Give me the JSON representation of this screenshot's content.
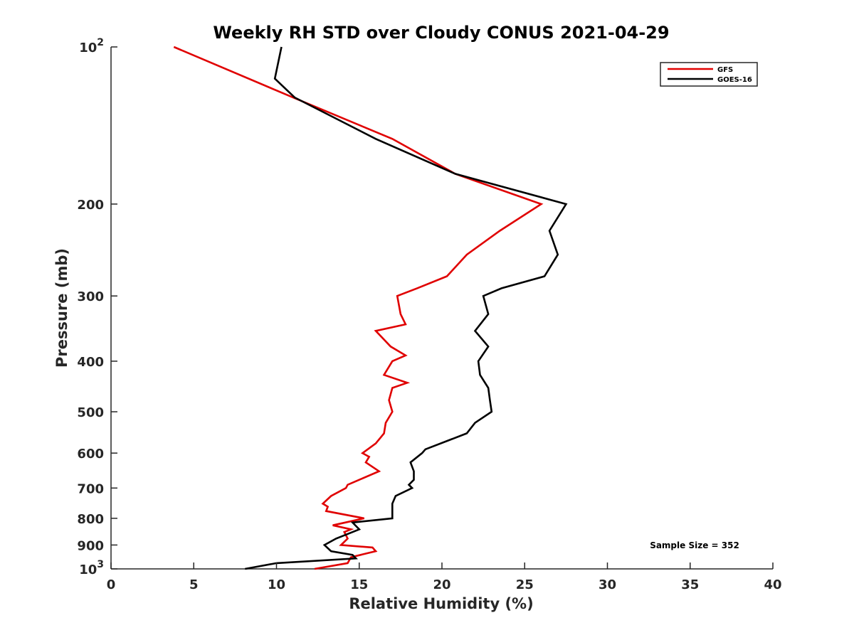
{
  "chart_data": {
    "type": "line",
    "title": "Weekly RH STD over Cloudy CONUS 2021-04-29",
    "xlabel": "Relative Humidity (%)",
    "ylabel": "Pressure (mb)",
    "xlim": [
      0,
      40
    ],
    "ylim": [
      100,
      1000
    ],
    "y_scale": "log",
    "y_reversed": true,
    "x_ticks": [
      "0",
      "5",
      "10",
      "15",
      "20",
      "25",
      "30",
      "35",
      "40"
    ],
    "x_tick_values": [
      0,
      5,
      10,
      15,
      20,
      25,
      30,
      35,
      40
    ],
    "y_ticks": [
      {
        "value": 100,
        "label": "10",
        "sup": "2"
      },
      {
        "value": 200,
        "label": "200",
        "sup": ""
      },
      {
        "value": 300,
        "label": "300",
        "sup": ""
      },
      {
        "value": 400,
        "label": "400",
        "sup": ""
      },
      {
        "value": 500,
        "label": "500",
        "sup": ""
      },
      {
        "value": 600,
        "label": "600",
        "sup": ""
      },
      {
        "value": 700,
        "label": "700",
        "sup": ""
      },
      {
        "value": 800,
        "label": "800",
        "sup": ""
      },
      {
        "value": 900,
        "label": "900",
        "sup": ""
      },
      {
        "value": 1000,
        "label": "10",
        "sup": "3"
      }
    ],
    "grid": false,
    "legend_position": "top-right",
    "annotation": "Sample Size = 352",
    "series": [
      {
        "name": "GFS",
        "color": "#e00000",
        "points": [
          [
            3.8,
            100
          ],
          [
            11.0,
            125
          ],
          [
            17.0,
            150
          ],
          [
            20.8,
            175
          ],
          [
            26.0,
            200
          ],
          [
            23.5,
            225
          ],
          [
            21.5,
            250
          ],
          [
            20.3,
            275
          ],
          [
            18.5,
            290
          ],
          [
            17.3,
            300
          ],
          [
            17.5,
            325
          ],
          [
            17.8,
            340
          ],
          [
            16.0,
            350
          ],
          [
            16.9,
            375
          ],
          [
            17.8,
            390
          ],
          [
            17.0,
            400
          ],
          [
            16.5,
            425
          ],
          [
            17.9,
            440
          ],
          [
            17.0,
            450
          ],
          [
            16.8,
            475
          ],
          [
            17.0,
            500
          ],
          [
            16.6,
            525
          ],
          [
            16.5,
            550
          ],
          [
            16.0,
            575
          ],
          [
            15.2,
            600
          ],
          [
            15.6,
            610
          ],
          [
            15.4,
            625
          ],
          [
            16.2,
            650
          ],
          [
            15.0,
            675
          ],
          [
            14.3,
            690
          ],
          [
            14.2,
            700
          ],
          [
            13.3,
            725
          ],
          [
            12.8,
            750
          ],
          [
            13.1,
            760
          ],
          [
            13.0,
            775
          ],
          [
            15.3,
            800
          ],
          [
            13.4,
            825
          ],
          [
            14.5,
            840
          ],
          [
            14.1,
            850
          ],
          [
            14.3,
            875
          ],
          [
            13.9,
            900
          ],
          [
            15.8,
            910
          ],
          [
            16.0,
            925
          ],
          [
            14.5,
            950
          ],
          [
            14.3,
            975
          ],
          [
            12.3,
            1000
          ]
        ]
      },
      {
        "name": "GOES-16",
        "color": "#000000",
        "points": [
          [
            10.3,
            100
          ],
          [
            9.9,
            115
          ],
          [
            11.1,
            125
          ],
          [
            16.0,
            150
          ],
          [
            20.8,
            175
          ],
          [
            27.5,
            200
          ],
          [
            26.5,
            225
          ],
          [
            27.0,
            250
          ],
          [
            26.2,
            275
          ],
          [
            23.6,
            290
          ],
          [
            22.5,
            300
          ],
          [
            22.8,
            325
          ],
          [
            22.0,
            350
          ],
          [
            22.8,
            375
          ],
          [
            22.2,
            400
          ],
          [
            22.3,
            425
          ],
          [
            22.8,
            450
          ],
          [
            22.9,
            475
          ],
          [
            23.0,
            500
          ],
          [
            22.0,
            525
          ],
          [
            21.5,
            550
          ],
          [
            19.0,
            590
          ],
          [
            18.8,
            600
          ],
          [
            18.1,
            625
          ],
          [
            18.3,
            650
          ],
          [
            18.3,
            675
          ],
          [
            18.0,
            690
          ],
          [
            18.2,
            700
          ],
          [
            17.2,
            725
          ],
          [
            17.0,
            750
          ],
          [
            17.0,
            775
          ],
          [
            17.0,
            800
          ],
          [
            14.6,
            815
          ],
          [
            15.0,
            840
          ],
          [
            13.6,
            875
          ],
          [
            12.9,
            900
          ],
          [
            13.3,
            925
          ],
          [
            14.6,
            940
          ],
          [
            14.8,
            955
          ],
          [
            10.0,
            975
          ],
          [
            8.1,
            1000
          ]
        ]
      }
    ]
  }
}
